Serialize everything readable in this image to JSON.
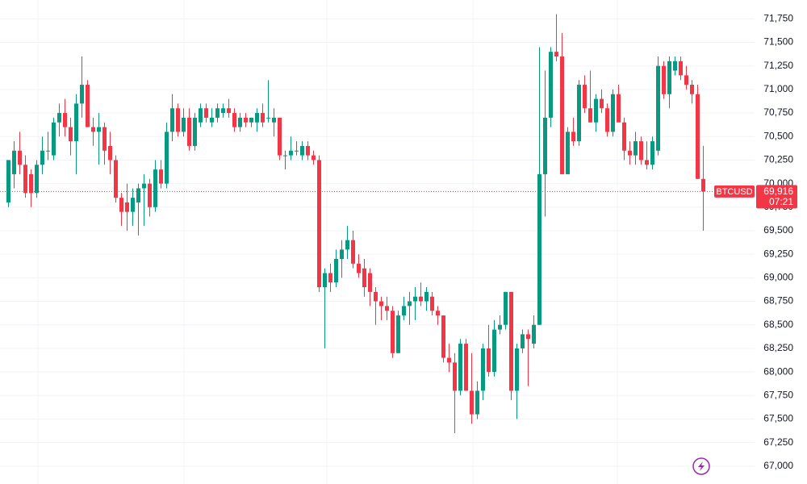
{
  "chart_data": {
    "type": "candlestick",
    "symbol": "BTCUSD",
    "last_price": {
      "value": 69916,
      "label": "69,916"
    },
    "countdown": "07:21",
    "up_color": "#089981",
    "down_color": "#f23645",
    "grid": true,
    "ylim": [
      66810,
      71950
    ],
    "yticks": [
      {
        "value": 67000,
        "label": "67,000"
      },
      {
        "value": 67250,
        "label": "67,250"
      },
      {
        "value": 67500,
        "label": "67,500"
      },
      {
        "value": 67750,
        "label": "67,750"
      },
      {
        "value": 68000,
        "label": "68,000"
      },
      {
        "value": 68250,
        "label": "68,250"
      },
      {
        "value": 68500,
        "label": "68,500"
      },
      {
        "value": 68750,
        "label": "68,750"
      },
      {
        "value": 69000,
        "label": "69,000"
      },
      {
        "value": 69250,
        "label": "69,250"
      },
      {
        "value": 69500,
        "label": "69,500"
      },
      {
        "value": 69750,
        "label": "69,750"
      },
      {
        "value": 70000,
        "label": "70,000"
      },
      {
        "value": 70250,
        "label": "70,250"
      },
      {
        "value": 70500,
        "label": "70,500"
      },
      {
        "value": 70750,
        "label": "70,750"
      },
      {
        "value": 71000,
        "label": "71,000"
      },
      {
        "value": 71250,
        "label": "71,250"
      },
      {
        "value": 71500,
        "label": "71,500"
      },
      {
        "value": 71750,
        "label": "71,750"
      }
    ],
    "candles": {
      "open": [
        69800,
        70100,
        70350,
        70200,
        70100,
        69900,
        70200,
        70350,
        70300,
        70650,
        70750,
        70600,
        70450,
        70850,
        71050,
        70600,
        70550,
        70600,
        70400,
        70250,
        69850,
        69800,
        69700,
        69800,
        69950,
        70000,
        69750,
        70150,
        70000,
        70550,
        70800,
        70550,
        70700,
        70400,
        70650,
        70800,
        70650,
        70700,
        70750,
        70800,
        70750,
        70600,
        70700,
        70650,
        70650,
        70750,
        70700,
        70650,
        70700,
        70300,
        70300,
        70350,
        70300,
        70400,
        70300,
        70250,
        68900,
        69050,
        68950,
        69200,
        69300,
        69400,
        69150,
        69100,
        69050,
        68850,
        68750,
        68700,
        68650,
        68200,
        68600,
        68700,
        68750,
        68800,
        68750,
        68800,
        68650,
        68600,
        68150,
        68100,
        67800,
        68300,
        67800,
        67550,
        67800,
        68250,
        68000,
        68450,
        68500,
        68850,
        67800,
        68250,
        68400,
        68300,
        68500,
        70100,
        70700,
        71400,
        71350,
        70100,
        70550,
        70450,
        71050,
        70800,
        70650,
        70900,
        70800,
        70550,
        70950,
        70650,
        70350,
        70300,
        70450,
        70250,
        70200,
        70350,
        71250,
        70950,
        71200,
        71300,
        71150,
        71050,
        70950,
        70050
      ],
      "high": [
        70250,
        70450,
        70550,
        70300,
        70150,
        70250,
        70500,
        70550,
        70700,
        70850,
        70900,
        70700,
        70950,
        71350,
        71100,
        70700,
        70750,
        70650,
        70550,
        70300,
        69900,
        70000,
        69950,
        70000,
        70100,
        70050,
        70250,
        70250,
        70650,
        70950,
        70850,
        70800,
        70800,
        70750,
        70850,
        70850,
        70800,
        70850,
        70850,
        70900,
        70800,
        70750,
        70750,
        70700,
        70800,
        70850,
        71100,
        70800,
        70700,
        70350,
        70500,
        70450,
        70450,
        70450,
        70350,
        70300,
        69100,
        69150,
        69300,
        69400,
        69550,
        69500,
        69250,
        69200,
        69100,
        68900,
        68800,
        68800,
        68700,
        68650,
        68800,
        68850,
        68900,
        68950,
        68900,
        68850,
        68700,
        68600,
        68300,
        68200,
        68350,
        68350,
        68200,
        67900,
        68300,
        68500,
        68550,
        68600,
        68850,
        68850,
        68300,
        68450,
        68450,
        68600,
        71450,
        71200,
        71450,
        71800,
        71600,
        70600,
        70700,
        71100,
        71150,
        71200,
        70950,
        71000,
        70850,
        71000,
        71050,
        70700,
        70450,
        70550,
        70500,
        70450,
        70500,
        71350,
        71300,
        71350,
        71350,
        71350,
        71250,
        71100,
        71050,
        70400
      ],
      "low": [
        69750,
        69950,
        70100,
        69850,
        69750,
        69850,
        70100,
        70250,
        70250,
        70500,
        70500,
        70300,
        70100,
        70700,
        70600,
        70400,
        70200,
        70200,
        70100,
        69800,
        69550,
        69500,
        69550,
        69450,
        69550,
        69650,
        69700,
        69950,
        69950,
        70450,
        70500,
        70500,
        70350,
        70350,
        70600,
        70650,
        70600,
        70650,
        70700,
        70700,
        70550,
        70550,
        70600,
        70600,
        70550,
        70600,
        70650,
        70500,
        70250,
        70150,
        70250,
        70300,
        70250,
        70250,
        70200,
        68850,
        68250,
        68850,
        68900,
        69000,
        69200,
        69100,
        69000,
        68800,
        68700,
        68500,
        68550,
        68550,
        68150,
        68200,
        68550,
        68500,
        68550,
        68700,
        68650,
        68600,
        68500,
        68100,
        68000,
        67350,
        67750,
        67800,
        67450,
        67500,
        67700,
        67950,
        67950,
        68400,
        68450,
        67700,
        67500,
        68200,
        67850,
        68250,
        68500,
        69650,
        70600,
        71300,
        70100,
        70100,
        70400,
        70400,
        70750,
        70650,
        70550,
        70750,
        70500,
        70500,
        70650,
        70250,
        70200,
        70200,
        70200,
        70150,
        70150,
        70300,
        70900,
        70800,
        71150,
        71100,
        71000,
        70850,
        70050,
        69500
      ],
      "close": [
        70250,
        70350,
        70200,
        69900,
        69900,
        70200,
        70350,
        70350,
        70650,
        70750,
        70600,
        70450,
        70850,
        71050,
        70600,
        70550,
        70600,
        70350,
        70250,
        69850,
        69700,
        69700,
        69850,
        69950,
        70000,
        69750,
        70150,
        70000,
        70550,
        70800,
        70550,
        70700,
        70400,
        70700,
        70800,
        70700,
        70700,
        70800,
        70800,
        70750,
        70600,
        70700,
        70650,
        70700,
        70750,
        70650,
        70700,
        70700,
        70300,
        70300,
        70350,
        70350,
        70400,
        70300,
        70250,
        68900,
        69050,
        68950,
        69200,
        69300,
        69400,
        69150,
        69050,
        68900,
        68850,
        68750,
        68700,
        68650,
        68200,
        68600,
        68700,
        68750,
        68800,
        68750,
        68850,
        68650,
        68600,
        68150,
        68100,
        67800,
        68300,
        67800,
        67550,
        67800,
        68250,
        68000,
        68450,
        68500,
        68850,
        67800,
        68250,
        68400,
        68350,
        68500,
        70100,
        70700,
        71400,
        71350,
        70100,
        70550,
        70450,
        71050,
        70800,
        70650,
        70900,
        70800,
        70550,
        70950,
        70650,
        70350,
        70300,
        70450,
        70250,
        70200,
        70450,
        71250,
        70950,
        71300,
        71300,
        71150,
        71050,
        70950,
        70050,
        69916
      ]
    }
  }
}
